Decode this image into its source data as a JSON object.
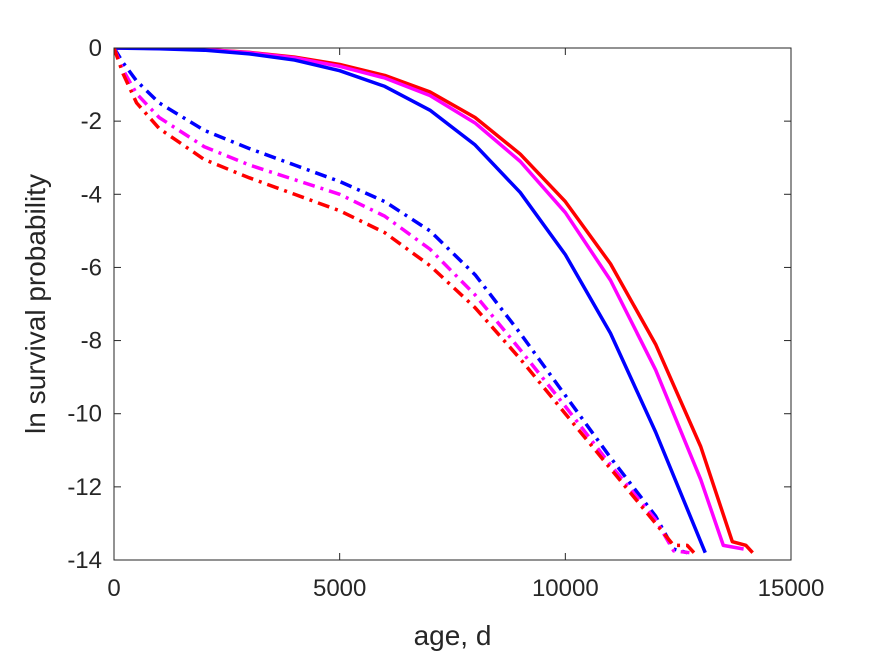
{
  "chart_data": {
    "type": "line",
    "title": "",
    "xlabel": "age, d",
    "ylabel": "ln survival probability",
    "xlim": [
      0,
      15000
    ],
    "ylim": [
      -14,
      0
    ],
    "xticks": [
      0,
      5000,
      10000,
      15000
    ],
    "yticks": [
      -14,
      -12,
      -10,
      -8,
      -6,
      -4,
      -2,
      0
    ],
    "xtick_labels": [
      "0",
      "5000",
      "10000",
      "15000"
    ],
    "ytick_labels": [
      "-14",
      "-12",
      "-10",
      "-8",
      "-6",
      "-4",
      "-2",
      "0"
    ],
    "grid": false,
    "legend": "none",
    "series": [
      {
        "color": "#ff0000",
        "style": "solid",
        "points": [
          [
            0,
            0
          ],
          [
            1000,
            -0.01
          ],
          [
            2000,
            -0.04
          ],
          [
            3000,
            -0.12
          ],
          [
            4000,
            -0.25
          ],
          [
            5000,
            -0.45
          ],
          [
            6000,
            -0.75
          ],
          [
            7000,
            -1.2
          ],
          [
            8000,
            -1.9
          ],
          [
            9000,
            -2.9
          ],
          [
            10000,
            -4.2
          ],
          [
            11000,
            -5.9
          ],
          [
            12000,
            -8.1
          ],
          [
            13000,
            -10.9
          ],
          [
            13700,
            -13.5
          ],
          [
            14000,
            -13.6
          ],
          [
            14150,
            -13.8
          ]
        ]
      },
      {
        "color": "#ff00ff",
        "style": "solid",
        "points": [
          [
            0,
            0
          ],
          [
            1000,
            -0.01
          ],
          [
            2000,
            -0.04
          ],
          [
            3000,
            -0.13
          ],
          [
            4000,
            -0.27
          ],
          [
            5000,
            -0.5
          ],
          [
            6000,
            -0.82
          ],
          [
            7000,
            -1.3
          ],
          [
            8000,
            -2.05
          ],
          [
            9000,
            -3.1
          ],
          [
            10000,
            -4.5
          ],
          [
            11000,
            -6.35
          ],
          [
            12000,
            -8.8
          ],
          [
            13000,
            -11.8
          ],
          [
            13500,
            -13.6
          ],
          [
            13950,
            -13.7
          ]
        ]
      },
      {
        "color": "#0000ff",
        "style": "solid",
        "points": [
          [
            0,
            0
          ],
          [
            1000,
            -0.02
          ],
          [
            2000,
            -0.06
          ],
          [
            3000,
            -0.16
          ],
          [
            4000,
            -0.33
          ],
          [
            5000,
            -0.62
          ],
          [
            6000,
            -1.05
          ],
          [
            7000,
            -1.7
          ],
          [
            8000,
            -2.65
          ],
          [
            9000,
            -3.95
          ],
          [
            10000,
            -5.65
          ],
          [
            11000,
            -7.8
          ],
          [
            12000,
            -10.5
          ],
          [
            12700,
            -12.6
          ],
          [
            13100,
            -13.8
          ]
        ]
      },
      {
        "color": "#0000ff",
        "style": "dashdot",
        "points": [
          [
            0,
            0
          ],
          [
            200,
            -0.4
          ],
          [
            500,
            -0.9
          ],
          [
            1000,
            -1.5
          ],
          [
            2000,
            -2.25
          ],
          [
            3000,
            -2.75
          ],
          [
            4000,
            -3.2
          ],
          [
            5000,
            -3.65
          ],
          [
            6000,
            -4.2
          ],
          [
            7000,
            -5.0
          ],
          [
            8000,
            -6.2
          ],
          [
            9000,
            -7.8
          ],
          [
            10000,
            -9.5
          ],
          [
            11000,
            -11.2
          ],
          [
            12000,
            -12.8
          ],
          [
            12400,
            -13.7
          ],
          [
            12700,
            -13.8
          ]
        ]
      },
      {
        "color": "#ff00ff",
        "style": "dashdot",
        "points": [
          [
            0,
            0
          ],
          [
            200,
            -0.6
          ],
          [
            500,
            -1.25
          ],
          [
            1000,
            -1.9
          ],
          [
            2000,
            -2.7
          ],
          [
            3000,
            -3.2
          ],
          [
            4000,
            -3.6
          ],
          [
            5000,
            -4.0
          ],
          [
            6000,
            -4.6
          ],
          [
            7000,
            -5.5
          ],
          [
            8000,
            -6.75
          ],
          [
            9000,
            -8.25
          ],
          [
            10000,
            -9.8
          ],
          [
            11000,
            -11.4
          ],
          [
            12000,
            -12.9
          ],
          [
            12400,
            -13.75
          ],
          [
            12750,
            -13.8
          ]
        ]
      },
      {
        "color": "#ff0000",
        "style": "dashdot",
        "points": [
          [
            0,
            0
          ],
          [
            200,
            -0.7
          ],
          [
            500,
            -1.5
          ],
          [
            1000,
            -2.2
          ],
          [
            2000,
            -3.05
          ],
          [
            3000,
            -3.55
          ],
          [
            4000,
            -4.0
          ],
          [
            5000,
            -4.45
          ],
          [
            6000,
            -5.05
          ],
          [
            7000,
            -5.95
          ],
          [
            8000,
            -7.1
          ],
          [
            9000,
            -8.5
          ],
          [
            10000,
            -10.0
          ],
          [
            11000,
            -11.5
          ],
          [
            12000,
            -13.0
          ],
          [
            12400,
            -13.6
          ],
          [
            12700,
            -13.6
          ],
          [
            12850,
            -13.8
          ]
        ]
      }
    ]
  }
}
